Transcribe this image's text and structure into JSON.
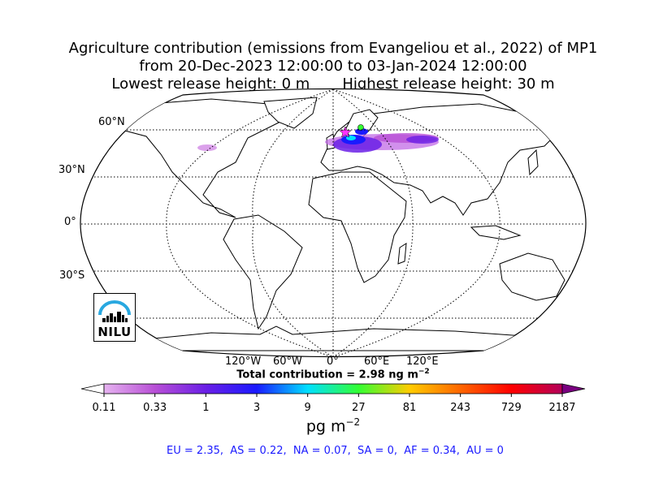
{
  "title": {
    "line1": "Agriculture contribution (emissions from Evangeliou et al., 2022) of MP1",
    "line2": "from 20-Dec-2023 12:00:00 to 03-Jan-2024 12:00:00",
    "line3": "Lowest release height: 0 m       Highest release height: 30 m"
  },
  "map": {
    "projection": "Robinson",
    "lat_labels": [
      "60°N",
      "30°N",
      "0°",
      "30°S"
    ],
    "lon_labels": [
      "120°W",
      "60°W",
      "0°",
      "60°E",
      "120°E"
    ],
    "graticule": "dotted",
    "emission_hotspots": [
      "Europe",
      "Russia",
      "North America (Great Lakes)"
    ]
  },
  "total_contribution": {
    "label": "Total contribution = 2.98 ng m",
    "exponent": "−2"
  },
  "colorbar": {
    "ticks": [
      "0.11",
      "0.33",
      "1",
      "3",
      "9",
      "27",
      "81",
      "243",
      "729",
      "2187"
    ],
    "unit": "pg m",
    "unit_exponent": "−2",
    "extend": "both",
    "colors": [
      "#ffffff",
      "#e6b3f0",
      "#b84fd6",
      "#6a1fe6",
      "#1a1aff",
      "#00e0ff",
      "#33ff33",
      "#ffcc00",
      "#ff6600",
      "#ff0000",
      "#b3005a",
      "#7a0080"
    ]
  },
  "regions": {
    "text": "EU = 2.35,  AS = 0.22,  NA = 0.07,  SA = 0,  AF = 0.34,  AU = 0"
  },
  "logo": {
    "text": "NILU",
    "arc_color": "#29a8e0"
  }
}
